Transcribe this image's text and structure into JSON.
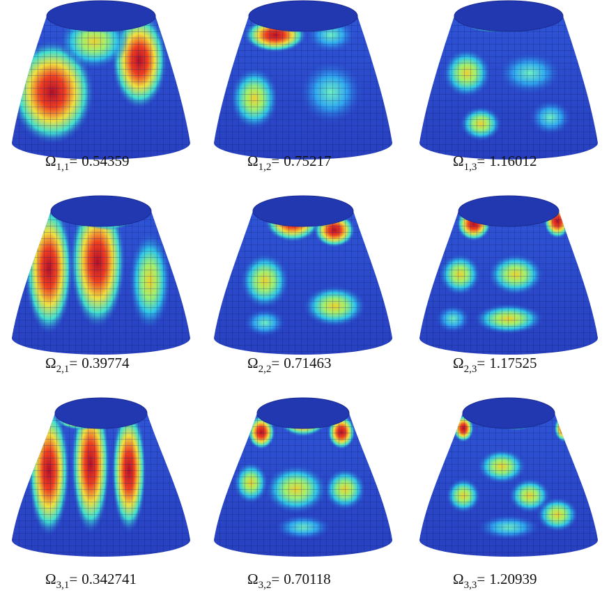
{
  "figure": {
    "relation": "=",
    "panels": [
      {
        "symbol": "Ω",
        "subscript": "1,1",
        "value": "0.54359"
      },
      {
        "symbol": "Ω",
        "subscript": "1,2",
        "value": "0.75217"
      },
      {
        "symbol": "Ω",
        "subscript": "1,3",
        "value": "1.16012"
      },
      {
        "symbol": "Ω",
        "subscript": "2,1",
        "value": "0.39774"
      },
      {
        "symbol": "Ω",
        "subscript": "2,2",
        "value": "0.71463"
      },
      {
        "symbol": "Ω",
        "subscript": "2,3",
        "value": "1.17525"
      },
      {
        "symbol": "Ω",
        "subscript": "3,1",
        "value": "0.342741"
      },
      {
        "symbol": "Ω",
        "subscript": "3,2",
        "value": "0.70118"
      },
      {
        "symbol": "Ω",
        "subscript": "3,3",
        "value": "1.20939"
      }
    ]
  }
}
